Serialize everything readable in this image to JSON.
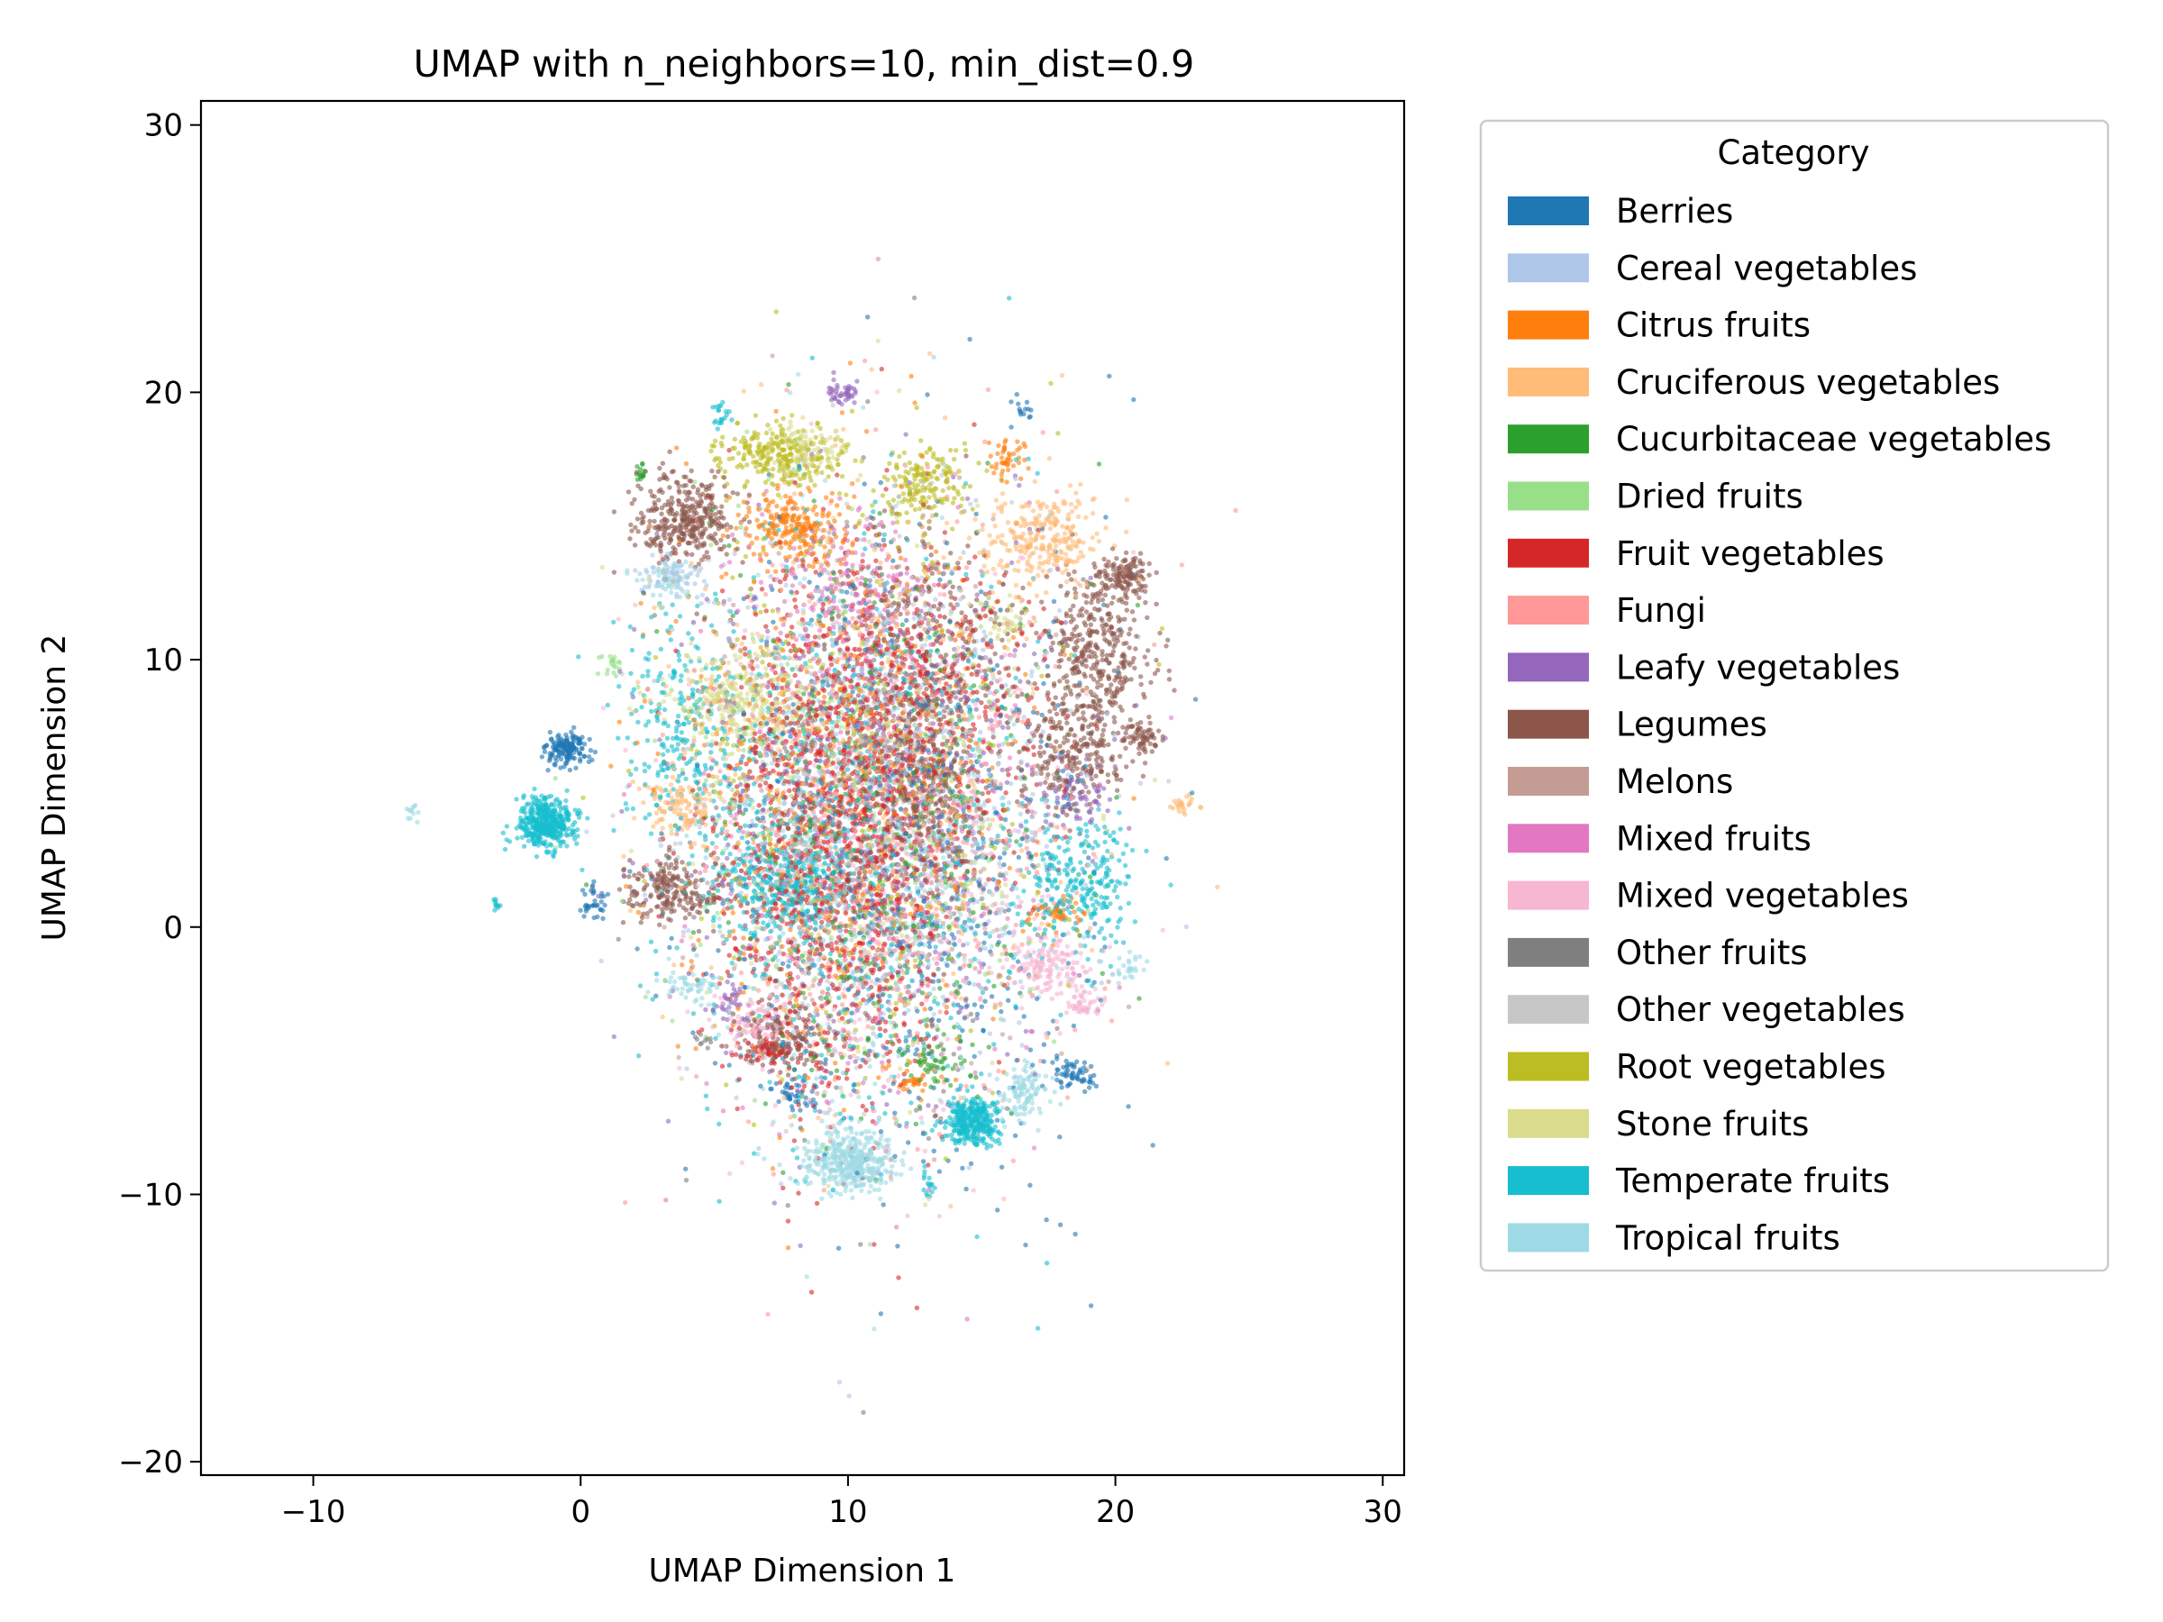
{
  "chart_data": {
    "type": "scatter",
    "title": "UMAP with n_neighbors=10, min_dist=0.9",
    "xlabel": "UMAP Dimension 1",
    "ylabel": "UMAP Dimension 2",
    "xlim": [
      -14.2,
      30.8
    ],
    "ylim": [
      -20.5,
      30.9
    ],
    "xticks": [
      -10,
      0,
      10,
      20,
      30
    ],
    "yticks": [
      -20,
      -10,
      0,
      10,
      20,
      30
    ],
    "xtick_labels": [
      "−10",
      "0",
      "10",
      "20",
      "30"
    ],
    "ytick_labels": [
      "−20",
      "−10",
      "0",
      "10",
      "20",
      "30"
    ],
    "grid": false,
    "legend": {
      "title": "Category",
      "placement": "outside-right"
    },
    "series": [
      {
        "name": "Berries",
        "color": "#1f77b4",
        "clusters": [
          {
            "cx": -0.5,
            "cy": 6.6,
            "sx": 0.4,
            "sy": 0.35,
            "n": 150
          },
          {
            "cx": 0.5,
            "cy": 0.9,
            "sx": 0.3,
            "sy": 0.3,
            "n": 35
          },
          {
            "cx": 18.5,
            "cy": -5.6,
            "sx": 0.4,
            "sy": 0.3,
            "n": 60
          },
          {
            "cx": 16.5,
            "cy": 19.3,
            "sx": 0.2,
            "sy": 0.2,
            "n": 15
          },
          {
            "cx": 8,
            "cy": -6.3,
            "sx": 0.4,
            "sy": 0.3,
            "n": 40
          },
          {
            "cx": 12,
            "cy": 3,
            "sx": 3.5,
            "sy": 6,
            "n": 700
          }
        ]
      },
      {
        "name": "Cereal vegetables",
        "color": "#aec7e8",
        "clusters": [
          {
            "cx": 3.5,
            "cy": 13.2,
            "sx": 0.6,
            "sy": 0.4,
            "n": 60
          },
          {
            "cx": 11,
            "cy": 5,
            "sx": 3.5,
            "sy": 5.5,
            "n": 600
          }
        ]
      },
      {
        "name": "Citrus fruits",
        "color": "#ff7f0e",
        "clusters": [
          {
            "cx": 8,
            "cy": 15,
            "sx": 0.9,
            "sy": 0.6,
            "n": 220
          },
          {
            "cx": 16,
            "cy": 17.5,
            "sx": 0.3,
            "sy": 0.4,
            "n": 45
          },
          {
            "cx": 17.8,
            "cy": 0.6,
            "sx": 0.5,
            "sy": 0.3,
            "n": 40
          },
          {
            "cx": 12.5,
            "cy": -5.8,
            "sx": 0.3,
            "sy": 0.2,
            "n": 25
          },
          {
            "cx": 10,
            "cy": 5,
            "sx": 3.5,
            "sy": 5.5,
            "n": 500
          }
        ]
      },
      {
        "name": "Cruciferous vegetables",
        "color": "#ffbb78",
        "clusters": [
          {
            "cx": 17.2,
            "cy": 14.5,
            "sx": 1.1,
            "sy": 0.8,
            "n": 280
          },
          {
            "cx": 3.8,
            "cy": 4.6,
            "sx": 0.6,
            "sy": 0.6,
            "n": 120
          },
          {
            "cx": 22.5,
            "cy": 4.6,
            "sx": 0.25,
            "sy": 0.3,
            "n": 25
          },
          {
            "cx": 10,
            "cy": 5,
            "sx": 3.5,
            "sy": 5.5,
            "n": 400
          }
        ]
      },
      {
        "name": "Cucurbitaceae vegetables",
        "color": "#2ca02c",
        "clusters": [
          {
            "cx": 2.3,
            "cy": 17.1,
            "sx": 0.1,
            "sy": 0.25,
            "n": 15
          },
          {
            "cx": 13.5,
            "cy": -5,
            "sx": 0.8,
            "sy": 0.5,
            "n": 60
          },
          {
            "cx": 11,
            "cy": 4,
            "sx": 3.5,
            "sy": 5.5,
            "n": 350
          }
        ]
      },
      {
        "name": "Dried fruits",
        "color": "#98df8a",
        "clusters": [
          {
            "cx": 1.2,
            "cy": 9.8,
            "sx": 0.2,
            "sy": 0.2,
            "n": 20
          },
          {
            "cx": 10,
            "cy": 5,
            "sx": 3.5,
            "sy": 5.5,
            "n": 300
          }
        ]
      },
      {
        "name": "Fruit vegetables",
        "color": "#d62728",
        "clusters": [
          {
            "cx": 9.5,
            "cy": 3.5,
            "sx": 2.2,
            "sy": 4.8,
            "n": 1300
          },
          {
            "cx": 12.5,
            "cy": 8,
            "sx": 2.5,
            "sy": 3,
            "n": 500
          },
          {
            "cx": 7,
            "cy": -4.6,
            "sx": 0.6,
            "sy": 0.3,
            "n": 60
          }
        ]
      },
      {
        "name": "Fungi",
        "color": "#ff9896",
        "clusters": [
          {
            "cx": 11,
            "cy": 4,
            "sx": 3.5,
            "sy": 5.5,
            "n": 450
          }
        ]
      },
      {
        "name": "Leafy vegetables",
        "color": "#9467bd",
        "clusters": [
          {
            "cx": 9.8,
            "cy": 20,
            "sx": 0.3,
            "sy": 0.25,
            "n": 45
          },
          {
            "cx": 18.5,
            "cy": 5,
            "sx": 0.6,
            "sy": 0.6,
            "n": 80
          },
          {
            "cx": 5.5,
            "cy": -2.8,
            "sx": 0.3,
            "sy": 0.3,
            "n": 30
          },
          {
            "cx": 11,
            "cy": 5,
            "sx": 3.5,
            "sy": 5.5,
            "n": 500
          }
        ]
      },
      {
        "name": "Legumes",
        "color": "#8c564b",
        "clusters": [
          {
            "cx": 3.8,
            "cy": 15.3,
            "sx": 0.9,
            "sy": 0.8,
            "n": 360
          },
          {
            "cx": 19.3,
            "cy": 10.2,
            "sx": 1,
            "sy": 1.4,
            "n": 380
          },
          {
            "cx": 20.3,
            "cy": 13.1,
            "sx": 0.5,
            "sy": 0.4,
            "n": 130
          },
          {
            "cx": 21.1,
            "cy": 7.1,
            "sx": 0.3,
            "sy": 0.3,
            "n": 60
          },
          {
            "cx": 18.3,
            "cy": 6.4,
            "sx": 1.1,
            "sy": 1,
            "n": 250
          },
          {
            "cx": 3.4,
            "cy": 1.4,
            "sx": 0.9,
            "sy": 0.6,
            "n": 220
          },
          {
            "cx": 7.5,
            "cy": -4.3,
            "sx": 0.9,
            "sy": 0.6,
            "n": 150
          },
          {
            "cx": 13,
            "cy": 5.5,
            "sx": 1,
            "sy": 2,
            "n": 300
          },
          {
            "cx": 12.7,
            "cy": 11,
            "sx": 2,
            "sy": 2,
            "n": 250
          }
        ]
      },
      {
        "name": "Melons",
        "color": "#c49c94",
        "clusters": [
          {
            "cx": 11,
            "cy": 4,
            "sx": 3.5,
            "sy": 5.5,
            "n": 300
          }
        ]
      },
      {
        "name": "Mixed fruits",
        "color": "#e377c2",
        "clusters": [
          {
            "cx": 10,
            "cy": 12.5,
            "sx": 1.5,
            "sy": 1.5,
            "n": 150
          },
          {
            "cx": 11,
            "cy": 3,
            "sx": 3.5,
            "sy": 5.5,
            "n": 300
          }
        ]
      },
      {
        "name": "Mixed vegetables",
        "color": "#f7b6d2",
        "clusters": [
          {
            "cx": 17.5,
            "cy": -1.3,
            "sx": 0.8,
            "sy": 0.6,
            "n": 140
          },
          {
            "cx": 18.8,
            "cy": -2.8,
            "sx": 0.4,
            "sy": 0.3,
            "n": 50
          },
          {
            "cx": 6.5,
            "cy": -3.6,
            "sx": 0.6,
            "sy": 0.5,
            "n": 80
          },
          {
            "cx": 11,
            "cy": 3,
            "sx": 3.5,
            "sy": 5.5,
            "n": 400
          }
        ]
      },
      {
        "name": "Other fruits",
        "color": "#7f7f7f",
        "clusters": [
          {
            "cx": 4.6,
            "cy": -4.2,
            "sx": 0.2,
            "sy": 0.2,
            "n": 10
          },
          {
            "cx": 11,
            "cy": 3,
            "sx": 3.5,
            "sy": 5.5,
            "n": 200
          }
        ]
      },
      {
        "name": "Other vegetables",
        "color": "#c7c7c7",
        "clusters": [
          {
            "cx": 11,
            "cy": 4,
            "sx": 3.5,
            "sy": 5.5,
            "n": 250
          }
        ]
      },
      {
        "name": "Root vegetables",
        "color": "#bcbd22",
        "clusters": [
          {
            "cx": 7.5,
            "cy": 17.6,
            "sx": 1.1,
            "sy": 0.6,
            "n": 260
          },
          {
            "cx": 12.8,
            "cy": 16.6,
            "sx": 0.8,
            "sy": 0.7,
            "n": 170
          },
          {
            "cx": 11,
            "cy": 5,
            "sx": 3.5,
            "sy": 5.5,
            "n": 300
          }
        ]
      },
      {
        "name": "Stone fruits",
        "color": "#dbdb8d",
        "clusters": [
          {
            "cx": 6,
            "cy": 8.5,
            "sx": 1.2,
            "sy": 0.9,
            "n": 330
          },
          {
            "cx": 15.8,
            "cy": 11.5,
            "sx": 0.4,
            "sy": 0.4,
            "n": 40
          },
          {
            "cx": 8.5,
            "cy": 17.9,
            "sx": 0.8,
            "sy": 0.5,
            "n": 90
          },
          {
            "cx": 11,
            "cy": 5,
            "sx": 3.5,
            "sy": 5.5,
            "n": 300
          }
        ]
      },
      {
        "name": "Temperate fruits",
        "color": "#17becf",
        "clusters": [
          {
            "cx": -1.3,
            "cy": 3.9,
            "sx": 0.55,
            "sy": 0.45,
            "n": 420
          },
          {
            "cx": 14.6,
            "cy": -7.3,
            "sx": 0.55,
            "sy": 0.45,
            "n": 330
          },
          {
            "cx": 7.5,
            "cy": 1.8,
            "sx": 1.3,
            "sy": 1.1,
            "n": 320
          },
          {
            "cx": 18.8,
            "cy": 1.8,
            "sx": 1.1,
            "sy": 1.3,
            "n": 260
          },
          {
            "cx": 5.2,
            "cy": 19.2,
            "sx": 0.2,
            "sy": 0.3,
            "n": 20
          },
          {
            "cx": -3.1,
            "cy": 0.9,
            "sx": 0.1,
            "sy": 0.1,
            "n": 10
          },
          {
            "cx": 13,
            "cy": -9.7,
            "sx": 0.15,
            "sy": 0.2,
            "n": 15
          },
          {
            "cx": 3.5,
            "cy": 7.5,
            "sx": 1,
            "sy": 2,
            "n": 200
          },
          {
            "cx": 10,
            "cy": 3,
            "sx": 3.5,
            "sy": 5.5,
            "n": 650
          }
        ]
      },
      {
        "name": "Tropical fruits",
        "color": "#9edae5",
        "clusters": [
          {
            "cx": 10.1,
            "cy": -8.8,
            "sx": 0.8,
            "sy": 0.6,
            "n": 420
          },
          {
            "cx": 16.6,
            "cy": -6.2,
            "sx": 0.4,
            "sy": 0.5,
            "n": 110
          },
          {
            "cx": -6.3,
            "cy": 4.3,
            "sx": 0.15,
            "sy": 0.15,
            "n": 12
          },
          {
            "cx": 4.2,
            "cy": -2.1,
            "sx": 0.5,
            "sy": 0.25,
            "n": 50
          },
          {
            "cx": 20.5,
            "cy": -1.5,
            "sx": 0.3,
            "sy": 0.3,
            "n": 25
          },
          {
            "cx": 3.2,
            "cy": 13,
            "sx": 0.6,
            "sy": 0.4,
            "n": 60
          },
          {
            "cx": 11,
            "cy": 3,
            "sx": 3.5,
            "sy": 5.5,
            "n": 450
          }
        ]
      }
    ]
  }
}
